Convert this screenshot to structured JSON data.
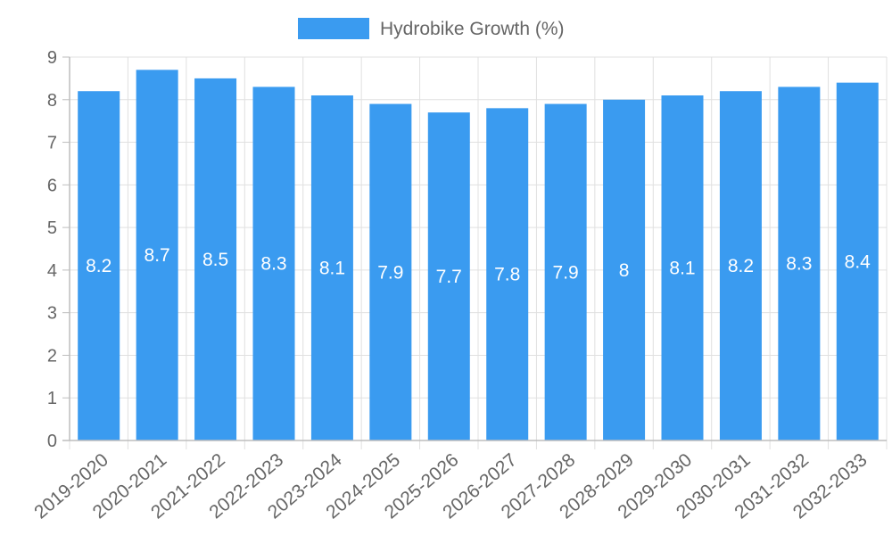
{
  "chart_data": {
    "type": "bar",
    "title": "",
    "xlabel": "",
    "ylabel": "",
    "legend": [
      {
        "name": "Hydrobike Growth (%)",
        "color": "#3a9bf0"
      }
    ],
    "legend_position": "top-center",
    "categories": [
      "2019-2020",
      "2020-2021",
      "2021-2022",
      "2022-2023",
      "2023-2024",
      "2024-2025",
      "2025-2026",
      "2026-2027",
      "2027-2028",
      "2028-2029",
      "2029-2030",
      "2030-2031",
      "2031-2032",
      "2032-2033"
    ],
    "values": [
      8.2,
      8.7,
      8.5,
      8.3,
      8.1,
      7.9,
      7.7,
      7.8,
      7.9,
      8,
      8.1,
      8.2,
      8.3,
      8.4
    ],
    "data_labels": [
      "8.2",
      "8.7",
      "8.5",
      "8.3",
      "8.1",
      "7.9",
      "7.7",
      "7.8",
      "7.9",
      "8",
      "8.1",
      "8.2",
      "8.3",
      "8.4"
    ],
    "ylim": [
      0,
      9
    ],
    "yticks": [
      "0",
      "1",
      "2",
      "3",
      "4",
      "5",
      "6",
      "7",
      "8",
      "9"
    ],
    "grid": true,
    "colors": {
      "bar": "#3a9bf0",
      "grid": "#e0e0e0",
      "axis": "#bdbdbd",
      "tick_text": "#666666",
      "label_text": "#ffffff"
    }
  }
}
